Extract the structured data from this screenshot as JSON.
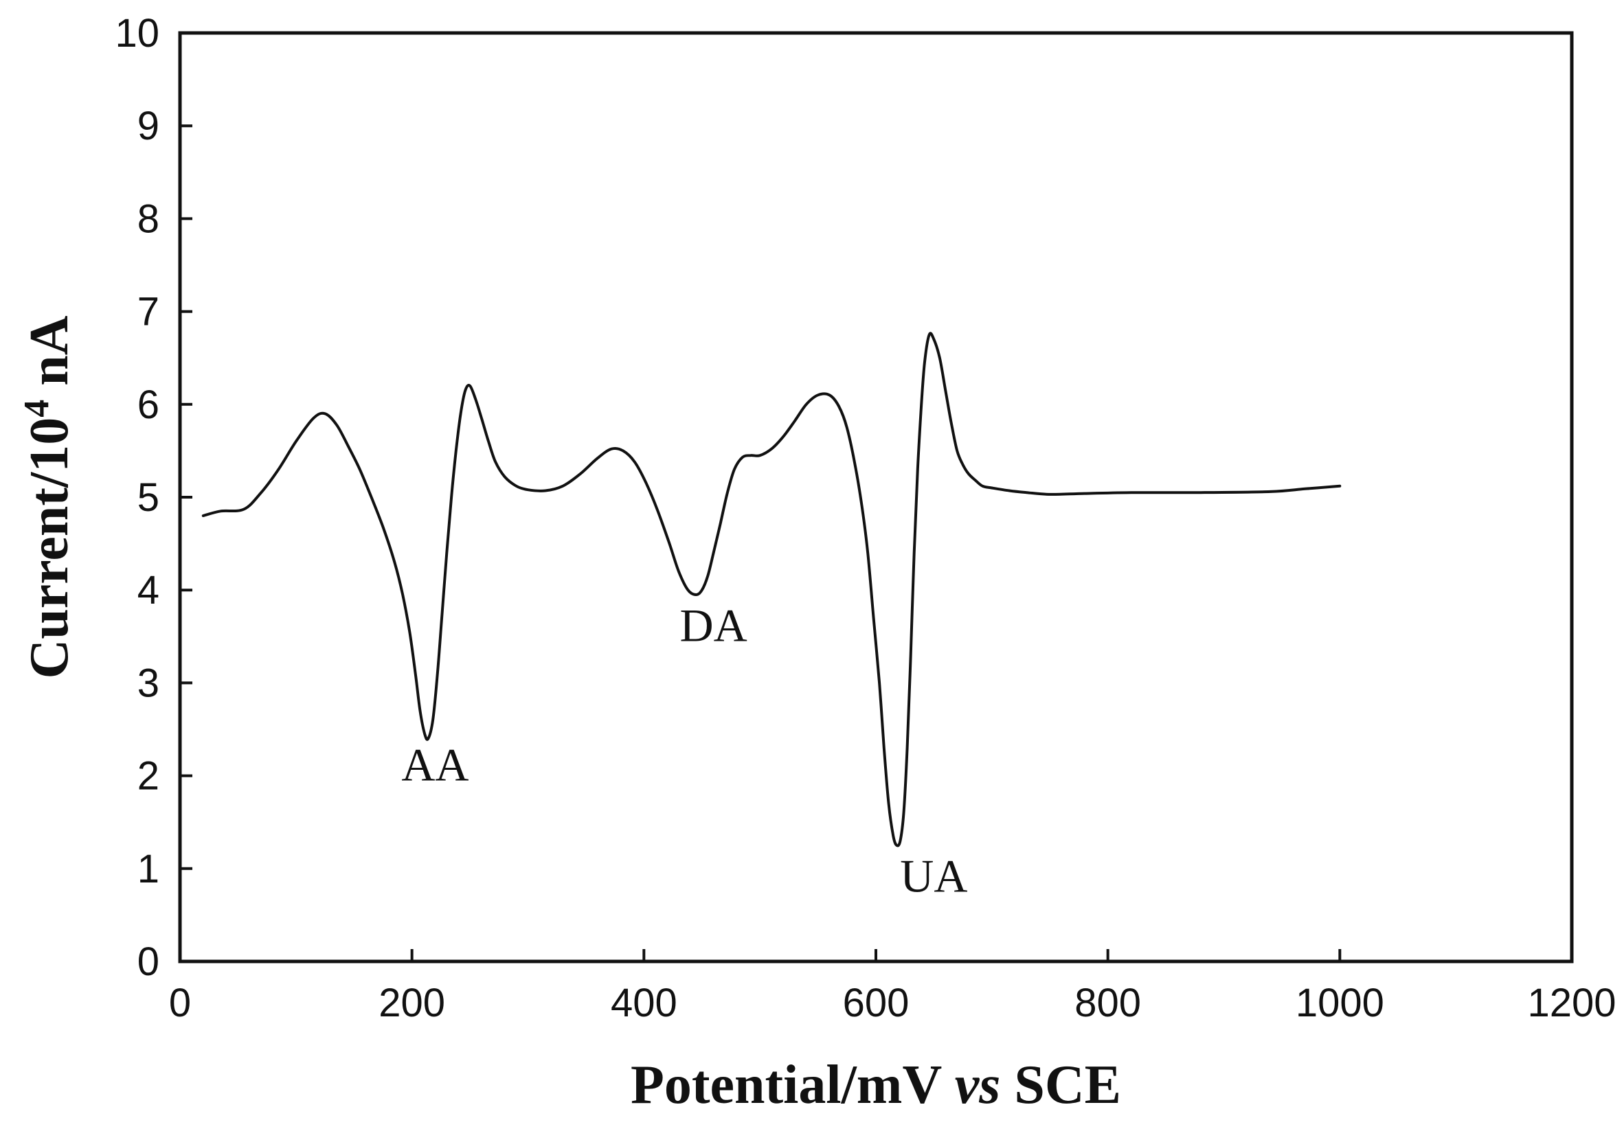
{
  "chart_data": {
    "type": "line",
    "title": "",
    "xlabel": {
      "prefix": "Potential/mV ",
      "italic": "vs",
      "suffix": " SCE"
    },
    "ylabel": {
      "prefix": "Current/10",
      "superscript": "4",
      "suffix": " nA"
    },
    "xlim": [
      0,
      1200
    ],
    "ylim": [
      0,
      10
    ],
    "xticks": [
      "0",
      "200",
      "400",
      "600",
      "800",
      "1000",
      "1200"
    ],
    "yticks": [
      "0",
      "1",
      "2",
      "3",
      "4",
      "5",
      "6",
      "7",
      "8",
      "9",
      "10"
    ],
    "grid": false,
    "legend": "none",
    "line_color": "#111111",
    "series": [
      {
        "x": [
          20,
          35,
          55,
          70,
          85,
          100,
          115,
          125,
          135,
          145,
          155,
          165,
          175,
          185,
          192,
          198,
          203,
          207,
          211,
          214,
          218,
          222,
          226,
          230,
          234,
          238,
          242,
          246,
          250,
          255,
          260,
          266,
          272,
          280,
          290,
          300,
          315,
          330,
          345,
          360,
          372,
          382,
          392,
          402,
          412,
          422,
          430,
          438,
          445,
          450,
          455,
          460,
          466,
          472,
          478,
          485,
          492,
          500,
          510,
          520,
          530,
          540,
          550,
          560,
          568,
          575,
          582,
          588,
          593,
          598,
          603,
          607,
          611,
          615,
          618,
          621,
          624,
          627,
          630,
          633,
          636,
          639,
          642,
          646,
          650,
          655,
          660,
          665,
          670,
          675,
          680,
          686,
          692,
          700,
          715,
          730,
          750,
          780,
          820,
          880,
          940,
          970,
          1000
        ],
        "y": [
          4.8,
          4.85,
          4.87,
          5.05,
          5.3,
          5.6,
          5.85,
          5.9,
          5.78,
          5.55,
          5.3,
          5.0,
          4.68,
          4.3,
          3.95,
          3.55,
          3.1,
          2.7,
          2.45,
          2.4,
          2.6,
          3.1,
          3.75,
          4.4,
          5.0,
          5.5,
          5.9,
          6.15,
          6.2,
          6.05,
          5.85,
          5.6,
          5.38,
          5.22,
          5.12,
          5.08,
          5.07,
          5.12,
          5.25,
          5.42,
          5.52,
          5.5,
          5.38,
          5.15,
          4.85,
          4.5,
          4.2,
          4.0,
          3.95,
          4.0,
          4.15,
          4.4,
          4.72,
          5.05,
          5.3,
          5.43,
          5.45,
          5.45,
          5.52,
          5.65,
          5.82,
          6.0,
          6.1,
          6.1,
          5.98,
          5.75,
          5.35,
          4.9,
          4.4,
          3.7,
          3.0,
          2.3,
          1.7,
          1.35,
          1.25,
          1.3,
          1.6,
          2.3,
          3.3,
          4.4,
          5.3,
          5.95,
          6.45,
          6.75,
          6.7,
          6.5,
          6.15,
          5.8,
          5.5,
          5.35,
          5.25,
          5.18,
          5.12,
          5.1,
          5.07,
          5.05,
          5.03,
          5.04,
          5.05,
          5.05,
          5.06,
          5.09,
          5.12
        ]
      }
    ],
    "annotations": [
      {
        "text": "AA",
        "x": 220,
        "y": 1.95
      },
      {
        "text": "DA",
        "x": 460,
        "y": 3.45
      },
      {
        "text": "UA",
        "x": 650,
        "y": 0.75
      }
    ]
  }
}
